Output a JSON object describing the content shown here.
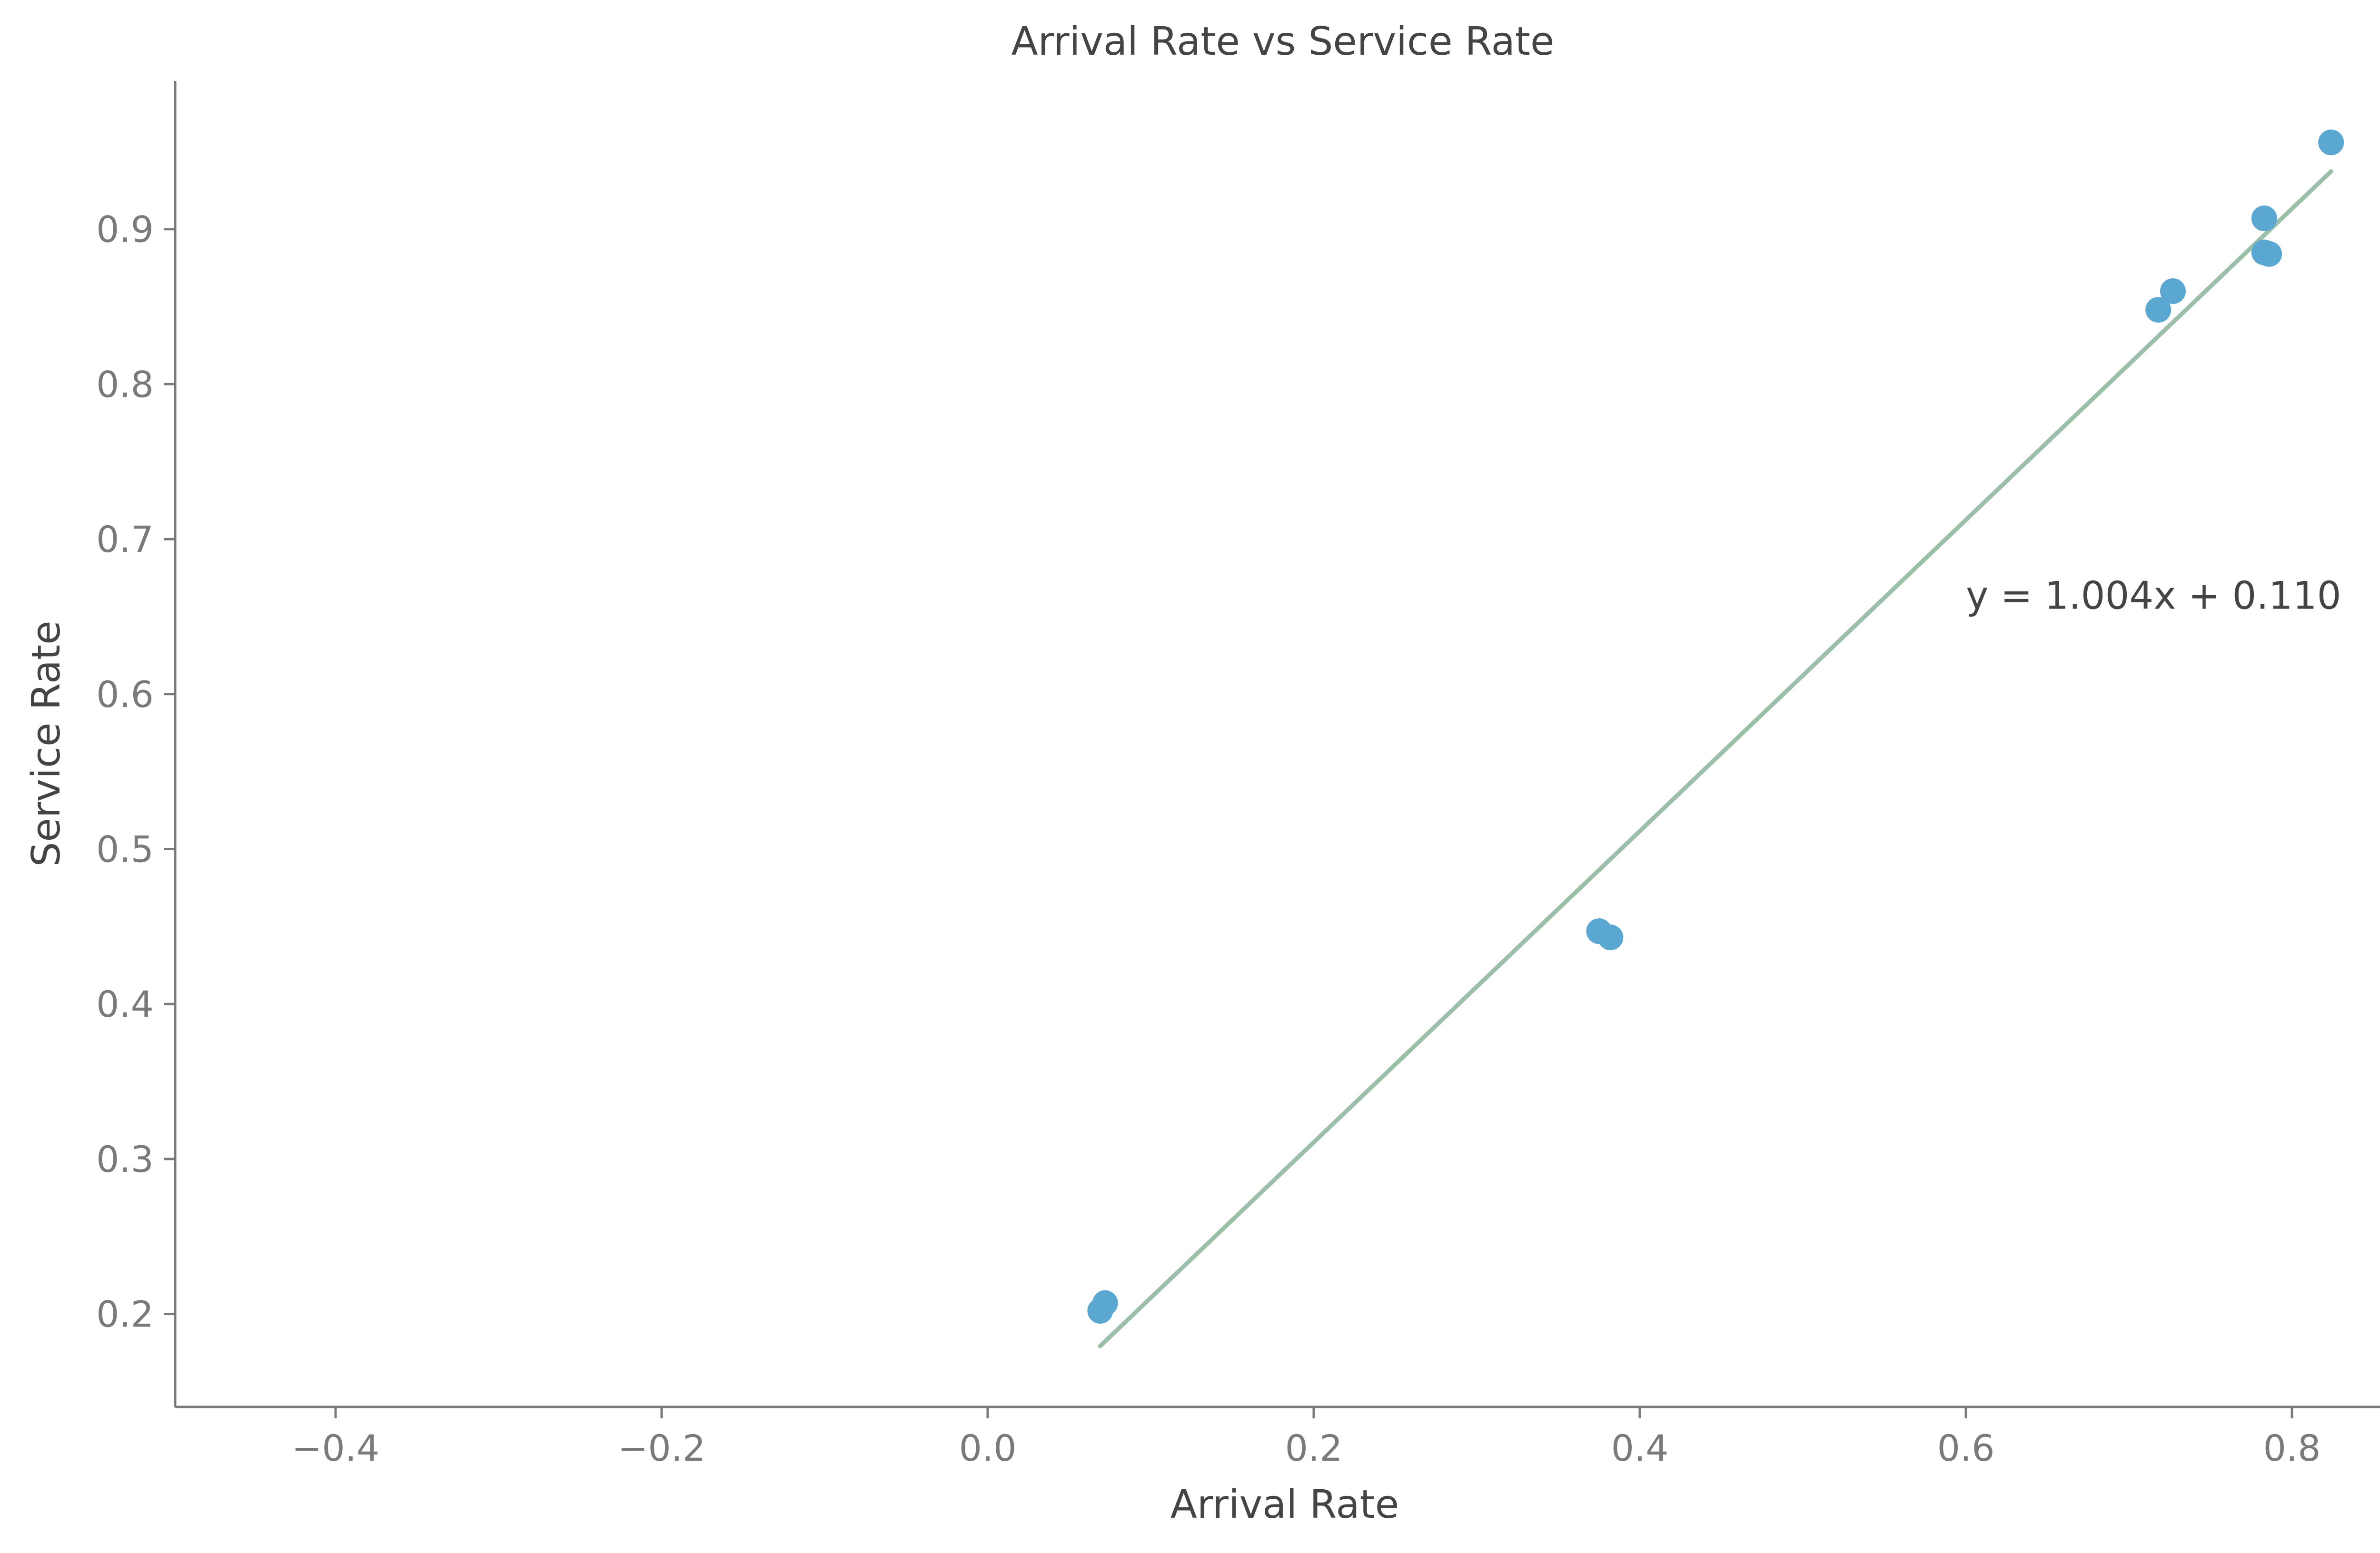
{
  "chart_data": {
    "type": "scatter",
    "title": "Arrival Rate vs Service Rate",
    "xlabel": "Arrival Rate",
    "ylabel": "Service Rate",
    "xlim": [
      -0.5,
      0.86
    ],
    "ylim": [
      0.14,
      0.995
    ],
    "x_ticks": [
      -0.4,
      -0.2,
      0.0,
      0.2,
      0.4,
      0.6,
      0.8
    ],
    "x_tick_labels": [
      "−0.4",
      "−0.2",
      "0.0",
      "0.2",
      "0.4",
      "0.6",
      "0.8"
    ],
    "y_ticks": [
      0.2,
      0.3,
      0.4,
      0.5,
      0.6,
      0.7,
      0.8,
      0.9
    ],
    "y_tick_labels": [
      "0.2",
      "0.3",
      "0.4",
      "0.5",
      "0.6",
      "0.7",
      "0.8",
      "0.9"
    ],
    "grid": false,
    "points": [
      {
        "x": 0.069,
        "y": 0.202
      },
      {
        "x": 0.072,
        "y": 0.207
      },
      {
        "x": 0.375,
        "y": 0.447
      },
      {
        "x": 0.382,
        "y": 0.443
      },
      {
        "x": 0.718,
        "y": 0.848
      },
      {
        "x": 0.727,
        "y": 0.86
      },
      {
        "x": 0.783,
        "y": 0.907
      },
      {
        "x": 0.783,
        "y": 0.885
      },
      {
        "x": 0.786,
        "y": 0.884
      },
      {
        "x": 0.824,
        "y": 0.956
      }
    ],
    "fit_line": {
      "slope": 1.004,
      "intercept": 0.11,
      "x_start": 0.069,
      "x_end": 0.824,
      "color": "#9bbfa8"
    },
    "annotation": {
      "text": "y = 1.004x + 0.110",
      "x": 0.6,
      "y": 0.655
    },
    "colors": {
      "points": "#5aa8d2",
      "axis": "#7a7a7a",
      "tick_text": "#7a7a7a",
      "label_text": "#444444"
    }
  }
}
